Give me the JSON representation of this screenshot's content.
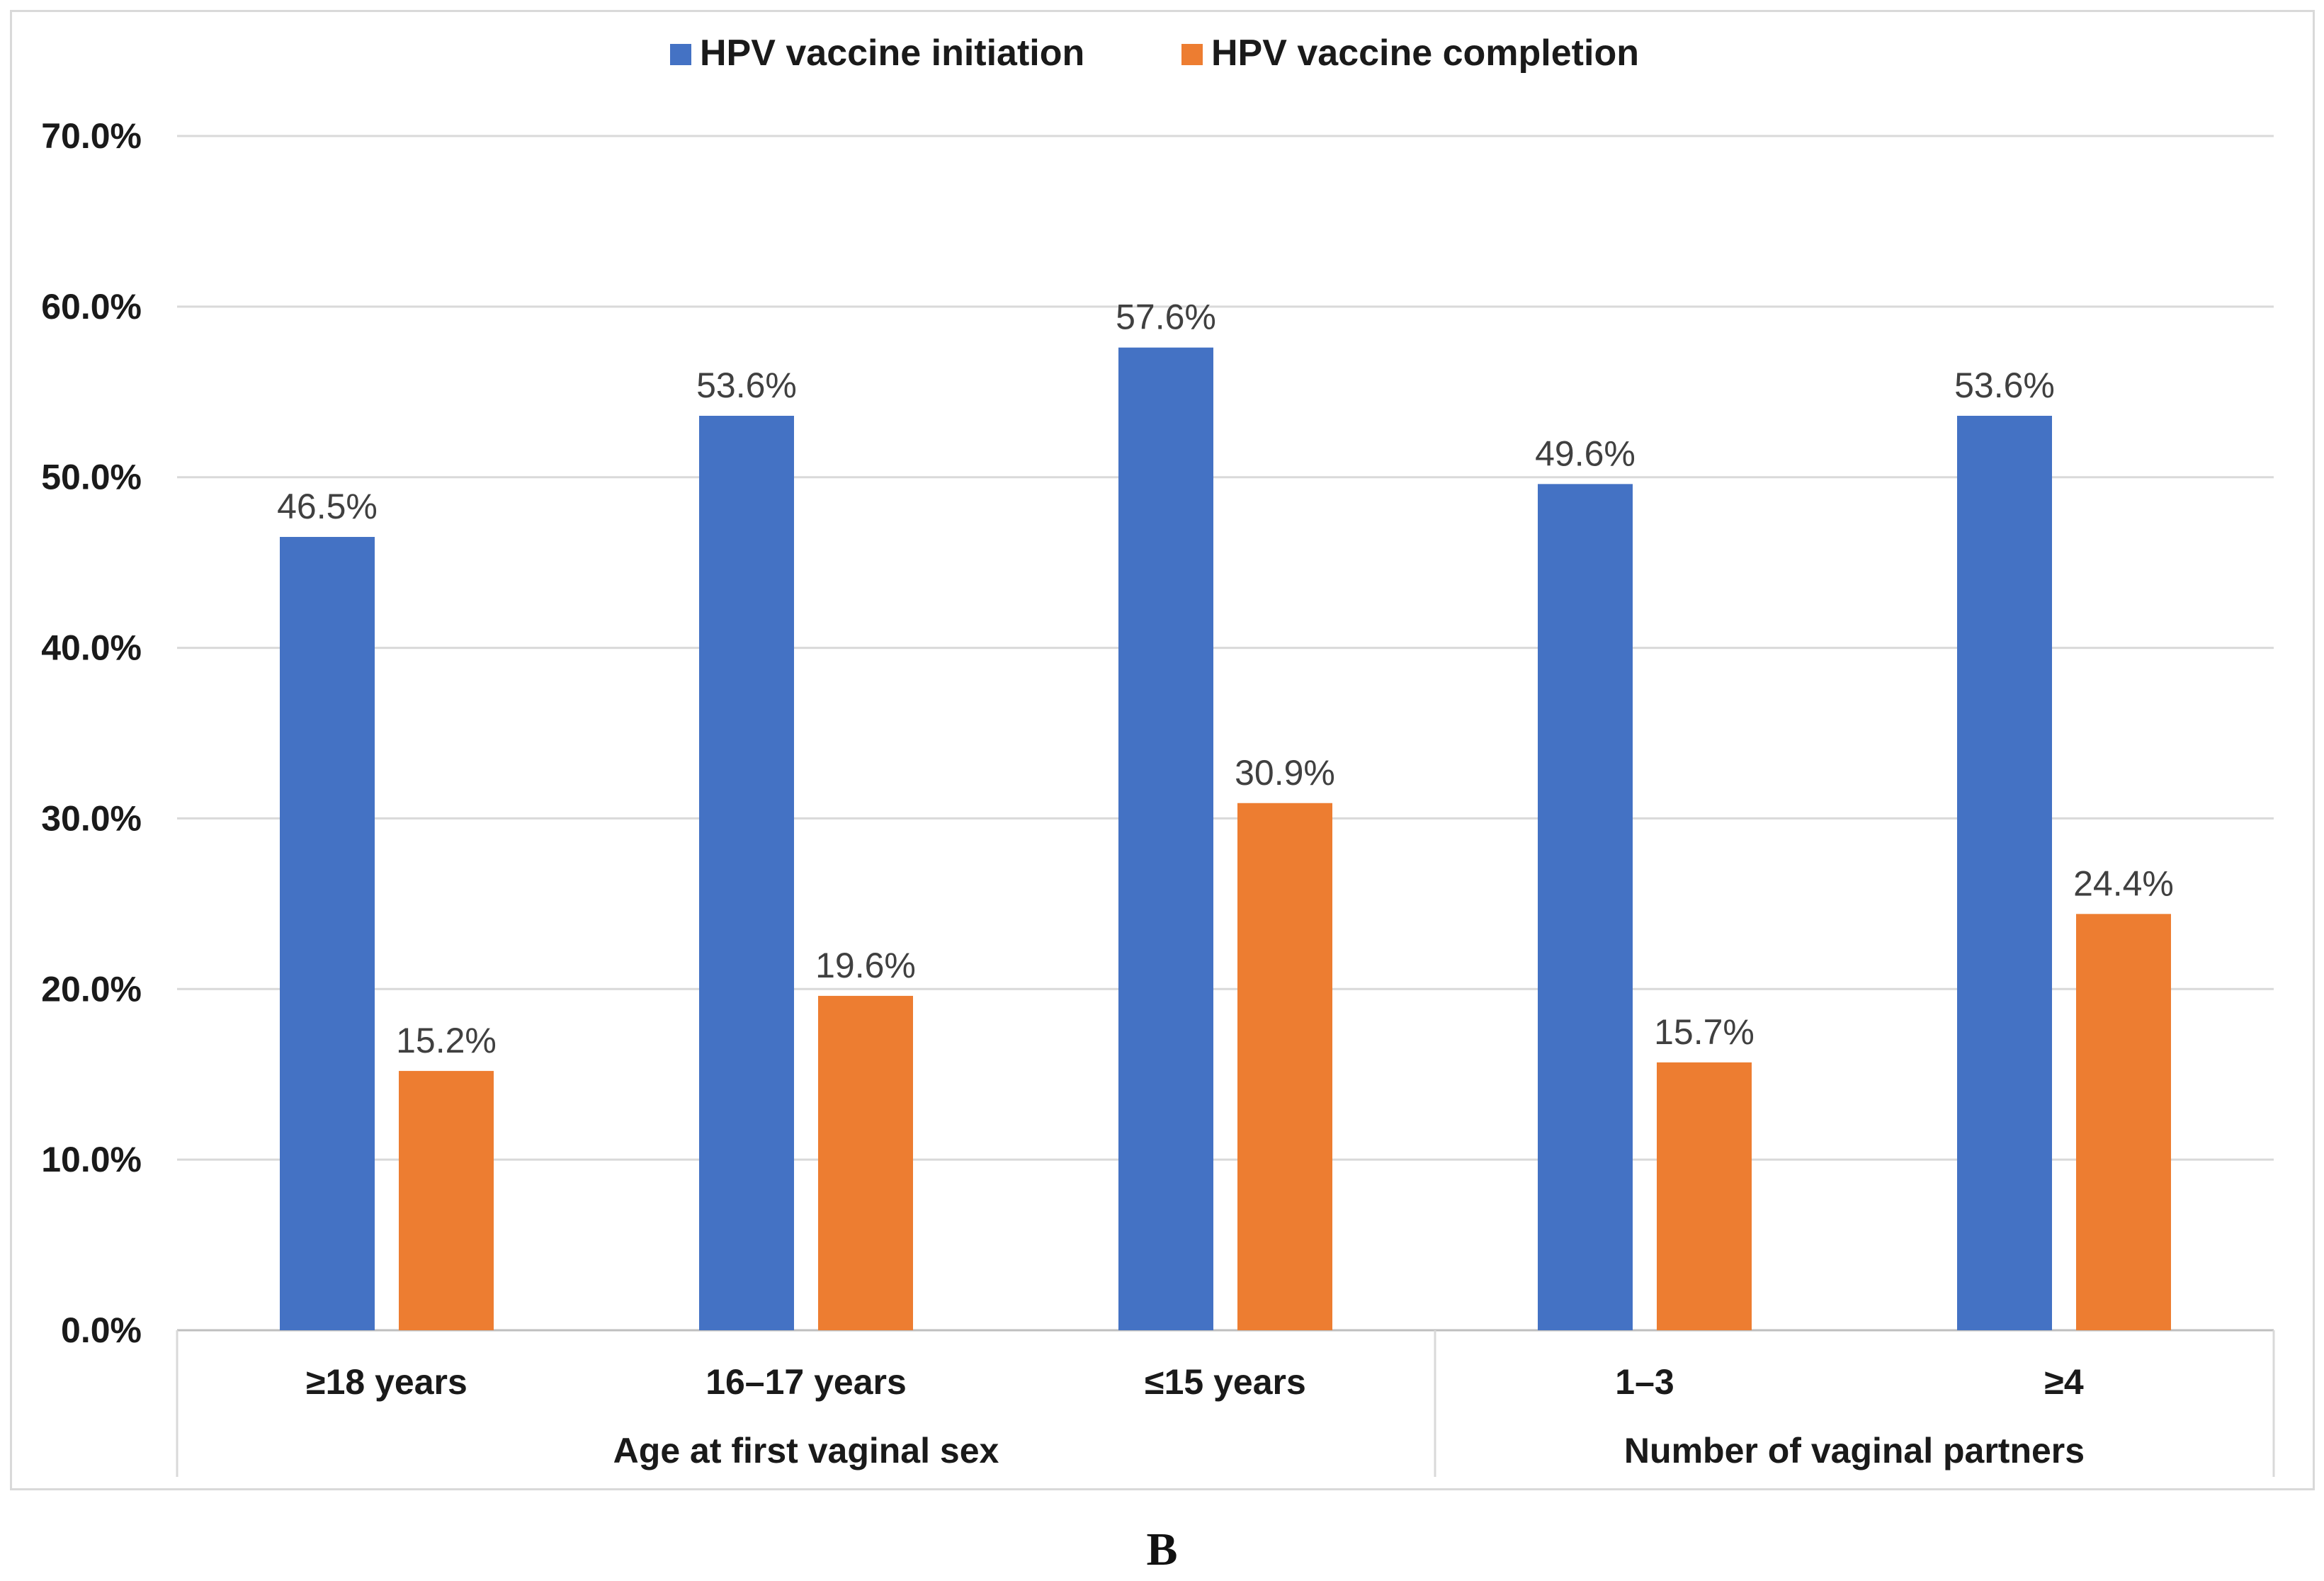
{
  "chart_data": {
    "type": "bar",
    "title": "",
    "xlabel": "",
    "ylabel": "",
    "ylim": [
      0,
      70
    ],
    "yticks": [
      0,
      10,
      20,
      30,
      40,
      50,
      60,
      70
    ],
    "ytick_labels": [
      "0.0%",
      "10.0%",
      "20.0%",
      "30.0%",
      "40.0%",
      "50.0%",
      "60.0%",
      "70.0%"
    ],
    "grid": true,
    "legend_position": "top-center",
    "categories": [
      "≥18 years",
      "16–17 years",
      "≤15 years",
      "1–3",
      "≥4"
    ],
    "groups": [
      {
        "label": "Age at first vaginal sex",
        "categories": [
          "≥18 years",
          "16–17 years",
          "≤15 years"
        ]
      },
      {
        "label": "Number of vaginal partners",
        "categories": [
          "1–3",
          "≥4"
        ]
      }
    ],
    "series": [
      {
        "name": "HPV vaccine initiation",
        "color": "#4472C4",
        "values": [
          46.5,
          53.6,
          57.6,
          49.6,
          53.6
        ],
        "labels": [
          "46.5%",
          "53.6%",
          "57.6%",
          "49.6%",
          "53.6%"
        ]
      },
      {
        "name": "HPV vaccine completion",
        "color": "#ED7D31",
        "values": [
          15.2,
          19.6,
          30.9,
          15.7,
          24.4
        ],
        "labels": [
          "15.2%",
          "19.6%",
          "30.9%",
          "15.7%",
          "24.4%"
        ]
      }
    ]
  },
  "panel_label": "B"
}
